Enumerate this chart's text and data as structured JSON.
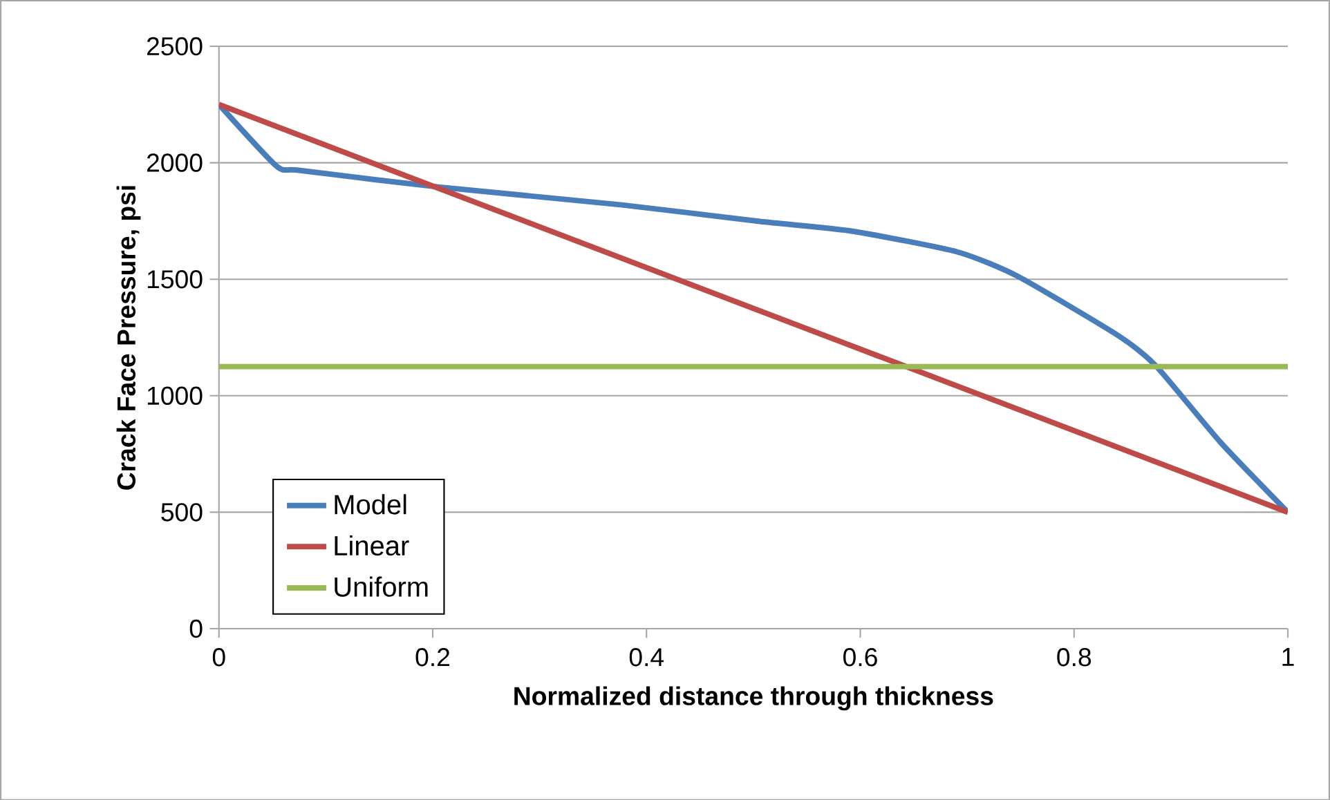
{
  "chart_data": {
    "type": "line",
    "xlabel": "Normalized distance through thickness",
    "ylabel": "Crack Face Pressure, psi",
    "xlim": [
      0,
      1
    ],
    "ylim": [
      0,
      2500
    ],
    "xticks": [
      0,
      0.2,
      0.4,
      0.6,
      0.8,
      1
    ],
    "yticks": [
      0,
      500,
      1000,
      1500,
      2000,
      2500
    ],
    "grid": "y",
    "legend": "left",
    "marker": "none",
    "line_style": "solid",
    "series": [
      {
        "name": "Model",
        "color": "#4a7ebb",
        "x": [
          0,
          0.054,
          0.076,
          0.205,
          0.377,
          0.506,
          0.593,
          0.691,
          0.748,
          0.842,
          0.877,
          0.937,
          1
        ],
        "values": [
          2250,
          1985,
          1967,
          1896,
          1819,
          1748,
          1706,
          1617,
          1511,
          1256,
          1126,
          800,
          500
        ]
      },
      {
        "name": "Linear",
        "color": "#be4b48",
        "x": [
          0,
          1
        ],
        "values": [
          2250,
          500
        ]
      },
      {
        "name": "Uniform",
        "color": "#98b954",
        "x": [
          0,
          1
        ],
        "values": [
          1125,
          1125
        ]
      }
    ]
  }
}
